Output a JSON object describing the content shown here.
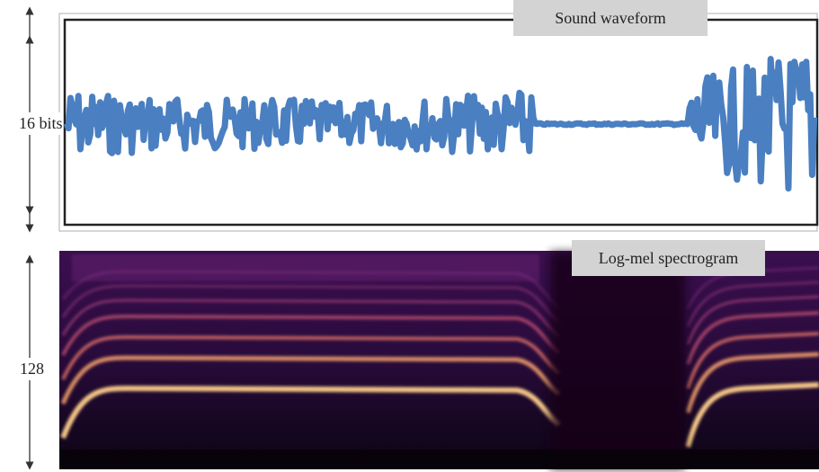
{
  "waveform": {
    "title": "Sound waveform",
    "ylabel": "16 bits",
    "line_color": "#4a7fc1"
  },
  "spectrogram": {
    "title": "Log-mel spectrogram",
    "ylabel": "128",
    "colormap": "magma"
  }
}
